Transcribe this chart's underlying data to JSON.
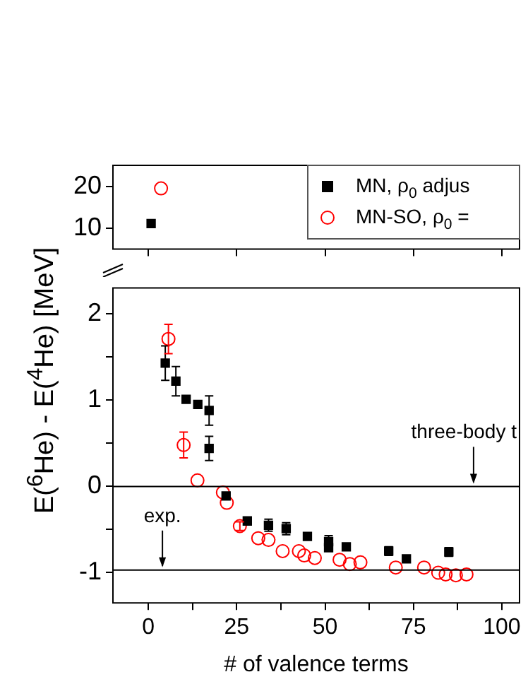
{
  "chart_data": [
    {
      "type": "scatter",
      "xlim": [
        -10,
        105
      ],
      "xticks": [
        0,
        25,
        50,
        75,
        100
      ],
      "ylim": [
        5,
        25
      ],
      "yticks": [
        10,
        20
      ],
      "tick_labels": "y",
      "legend": "top right",
      "grid": false,
      "series": [
        {
          "name": "MN, ρ$_{0}$ adjus",
          "color": "#000000",
          "marker": "square",
          "x": [
            0.8
          ],
          "values": [
            11.1
          ]
        },
        {
          "name": "MN-SO, ρ$_{0}$ =",
          "color": "#ff0000",
          "marker": "circle",
          "x": [
            3.6
          ],
          "values": [
            19.5
          ]
        }
      ]
    },
    {
      "type": "scatter",
      "xlabel": "# of valence terms",
      "ylabel": "E($^{6}$He) - E($^{4}$He) [MeV]",
      "xlim": [
        -10,
        105
      ],
      "xticks": [
        0,
        {
          "value": 12.5,
          "label": null
        },
        25,
        {
          "value": 37.5,
          "label": null
        },
        50,
        {
          "value": 62.5,
          "label": null
        },
        75,
        {
          "value": 87.5,
          "label": null
        },
        100
      ],
      "ylim": [
        -1.35,
        2.3
      ],
      "yticks": [
        -1,
        {
          "value": -0.5,
          "label": null
        },
        0,
        {
          "value": 0.5,
          "label": null
        },
        1,
        {
          "value": 1.5,
          "label": null
        },
        2
      ],
      "grid": false,
      "series": [
        {
          "color": "#000000",
          "marker": "square",
          "x": [
            4.8,
            7.8,
            10.7,
            14,
            17.2,
            17.2,
            22,
            28,
            34,
            39,
            45,
            51,
            51,
            56,
            68,
            73,
            85
          ],
          "values": [
            1.43,
            1.22,
            1.01,
            0.95,
            0.88,
            0.44,
            -0.11,
            -0.4,
            -0.45,
            -0.49,
            -0.58,
            -0.64,
            -0.71,
            -0.7,
            -0.75,
            -0.84,
            -0.76
          ],
          "errors": [
            0.2,
            0.17,
            null,
            null,
            0.17,
            0.14,
            null,
            null,
            0.07,
            0.07,
            null,
            0.07,
            null,
            null,
            0.05,
            null,
            0.05
          ]
        },
        {
          "color": "#ff0000",
          "marker": "circle",
          "x": [
            5.7,
            10,
            13.9,
            21.1,
            22.2,
            25.9,
            31.1,
            34,
            38,
            42.6,
            44.1,
            47.1,
            54.1,
            57,
            60,
            70,
            78,
            82,
            84.1,
            87,
            90
          ],
          "values": [
            1.71,
            0.48,
            0.07,
            -0.07,
            -0.19,
            -0.46,
            -0.6,
            -0.62,
            -0.75,
            -0.75,
            -0.8,
            -0.83,
            -0.85,
            -0.9,
            -0.88,
            -0.94,
            -0.94,
            -1.0,
            -1.02,
            -1.03,
            -1.02
          ],
          "errors": [
            0.17,
            0.15,
            null,
            null,
            null,
            0.05,
            null,
            null,
            null,
            null,
            null,
            null,
            null,
            null,
            null,
            null,
            null,
            null,
            null,
            null,
            null
          ]
        }
      ],
      "ref_lines": [
        {
          "axis": "y",
          "value": 0,
          "color": "#000000"
        },
        {
          "axis": "y",
          "value": -0.97,
          "color": "#000000"
        }
      ],
      "annotations": [
        {
          "text": "exp.",
          "x": 4,
          "y": -0.97
        },
        {
          "text": "three-body t",
          "x": 92,
          "y": 0
        }
      ]
    }
  ]
}
